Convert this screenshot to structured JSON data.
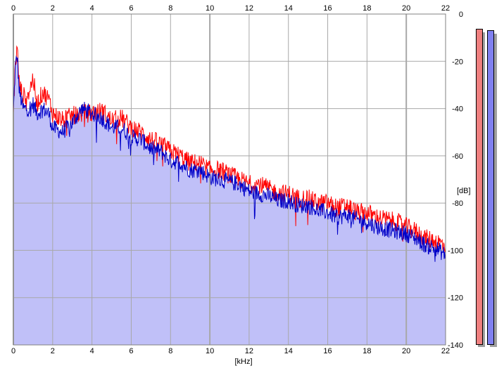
{
  "chart_data": {
    "type": "area",
    "title": "",
    "xlabel": "[kHz]",
    "ylabel": "[dB]",
    "xlim": [
      0,
      22
    ],
    "ylim": [
      -140,
      0
    ],
    "x_ticks": [
      0,
      2,
      4,
      6,
      8,
      10,
      12,
      14,
      16,
      18,
      20,
      22
    ],
    "x_tick_labels": [
      "0",
      "2",
      "4",
      "6",
      "8",
      "10",
      "12",
      "14",
      "16",
      "18",
      "20",
      "22"
    ],
    "y_ticks": [
      0,
      -20,
      -40,
      -60,
      -80,
      -100,
      -120,
      -140
    ],
    "y_tick_labels": [
      "0",
      "-20",
      "-40",
      "-60",
      "-80",
      "-100",
      "-120",
      "-140"
    ],
    "grid": true,
    "series": [
      {
        "color": "#ff0000",
        "x": [
          0,
          0.1,
          0.2,
          0.3,
          0.5,
          0.8,
          1.0,
          1.2,
          1.5,
          1.8,
          2.0,
          2.5,
          3.0,
          3.5,
          4.0,
          4.5,
          5.0,
          5.5,
          6.0,
          6.5,
          7.0,
          7.5,
          8.0,
          8.5,
          9.0,
          9.5,
          10.0,
          10.5,
          11.0,
          11.5,
          12.0,
          12.5,
          13.0,
          13.5,
          14.0,
          14.5,
          15.0,
          15.5,
          16.0,
          16.5,
          17.0,
          17.5,
          18.0,
          18.5,
          19.0,
          19.5,
          20.0,
          20.5,
          21.0,
          21.5,
          22.0
        ],
        "y": [
          -42,
          -20,
          -15,
          -30,
          -35,
          -33,
          -27,
          -38,
          -33,
          -36,
          -42,
          -45,
          -43,
          -42,
          -42,
          -41,
          -45,
          -44,
          -48,
          -50,
          -53,
          -55,
          -58,
          -60,
          -63,
          -63,
          -66,
          -66,
          -68,
          -70,
          -72,
          -72,
          -74,
          -76,
          -76,
          -78,
          -78,
          -80,
          -80,
          -82,
          -81,
          -84,
          -84,
          -86,
          -87,
          -88,
          -90,
          -92,
          -95,
          -96,
          -98
        ]
      },
      {
        "color": "#0000c8",
        "x": [
          0,
          0.1,
          0.2,
          0.3,
          0.5,
          0.8,
          1.0,
          1.2,
          1.5,
          1.8,
          2.0,
          2.5,
          3.0,
          3.5,
          4.0,
          4.5,
          5.0,
          5.5,
          6.0,
          6.5,
          7.0,
          7.5,
          8.0,
          8.5,
          9.0,
          9.5,
          10.0,
          10.5,
          11.0,
          11.5,
          12.0,
          12.5,
          13.0,
          13.5,
          14.0,
          14.5,
          15.0,
          15.5,
          16.0,
          16.5,
          17.0,
          17.5,
          18.0,
          18.5,
          19.0,
          19.5,
          20.0,
          20.5,
          21.0,
          21.5,
          22.0
        ],
        "y": [
          -42,
          -22,
          -18,
          -33,
          -40,
          -40,
          -38,
          -42,
          -40,
          -42,
          -48,
          -50,
          -46,
          -40,
          -42,
          -44,
          -48,
          -48,
          -52,
          -53,
          -57,
          -58,
          -62,
          -63,
          -66,
          -66,
          -69,
          -70,
          -71,
          -72,
          -75,
          -76,
          -77,
          -79,
          -79,
          -81,
          -81,
          -83,
          -84,
          -86,
          -85,
          -87,
          -88,
          -90,
          -91,
          -92,
          -93,
          -95,
          -98,
          -99,
          -102
        ]
      }
    ],
    "fill_color": "#c0c0f8",
    "meters": [
      {
        "color": "#f08080",
        "level": 0.936
      },
      {
        "color": "#8080f0",
        "level": 0.936
      }
    ]
  }
}
